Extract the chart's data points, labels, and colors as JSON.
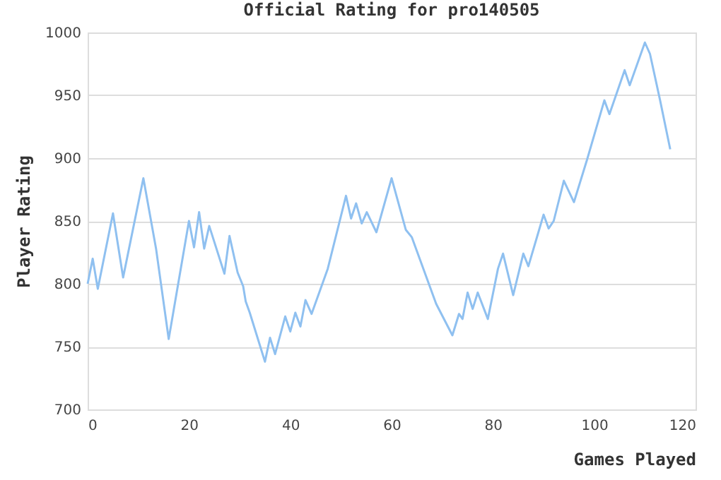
{
  "chart_data": {
    "type": "line",
    "title": "Official Rating for pro140505",
    "xlabel": "Games Played",
    "ylabel": "Player Rating",
    "xlim": [
      0,
      120
    ],
    "xticks": [
      0,
      20,
      40,
      60,
      80,
      100,
      120
    ],
    "ylim": [
      700,
      1000
    ],
    "yticks": [
      700,
      750,
      800,
      850,
      900,
      950,
      1000
    ],
    "grid": "y",
    "marker": "none",
    "line_style": "solid",
    "series": [
      {
        "color": "#8fc0f0",
        "x": [
          0,
          1,
          2,
          5,
          7,
          11,
          13.5,
          16,
          20,
          21,
          22,
          23,
          24,
          27,
          28,
          29.6,
          30.7,
          31.2,
          32,
          35,
          36,
          37,
          39,
          40,
          41,
          42,
          43,
          44.2,
          47.4,
          51,
          52,
          53,
          54.1,
          55.1,
          57,
          60,
          62.8,
          64,
          68.8,
          72,
          73.3,
          74,
          75,
          76,
          77,
          79,
          81,
          82,
          84,
          86,
          87,
          90,
          91,
          92,
          94,
          96,
          98.6,
          102,
          103,
          106,
          107,
          110,
          111,
          113,
          115
        ],
        "values": [
          800,
          820,
          796,
          856,
          805,
          884,
          828,
          756,
          850,
          829,
          857,
          828,
          846,
          808,
          838,
          809,
          798,
          786,
          777,
          738,
          757,
          744,
          774,
          762,
          777,
          766,
          787,
          776,
          812,
          870,
          852,
          864,
          848,
          857,
          841,
          884,
          843,
          837,
          784,
          759,
          776,
          772,
          793,
          780,
          793,
          772,
          812,
          824,
          791,
          824,
          814,
          855,
          844,
          850,
          882,
          865,
          899,
          946,
          935,
          970,
          958,
          992,
          983,
          946,
          907
        ]
      }
    ]
  }
}
